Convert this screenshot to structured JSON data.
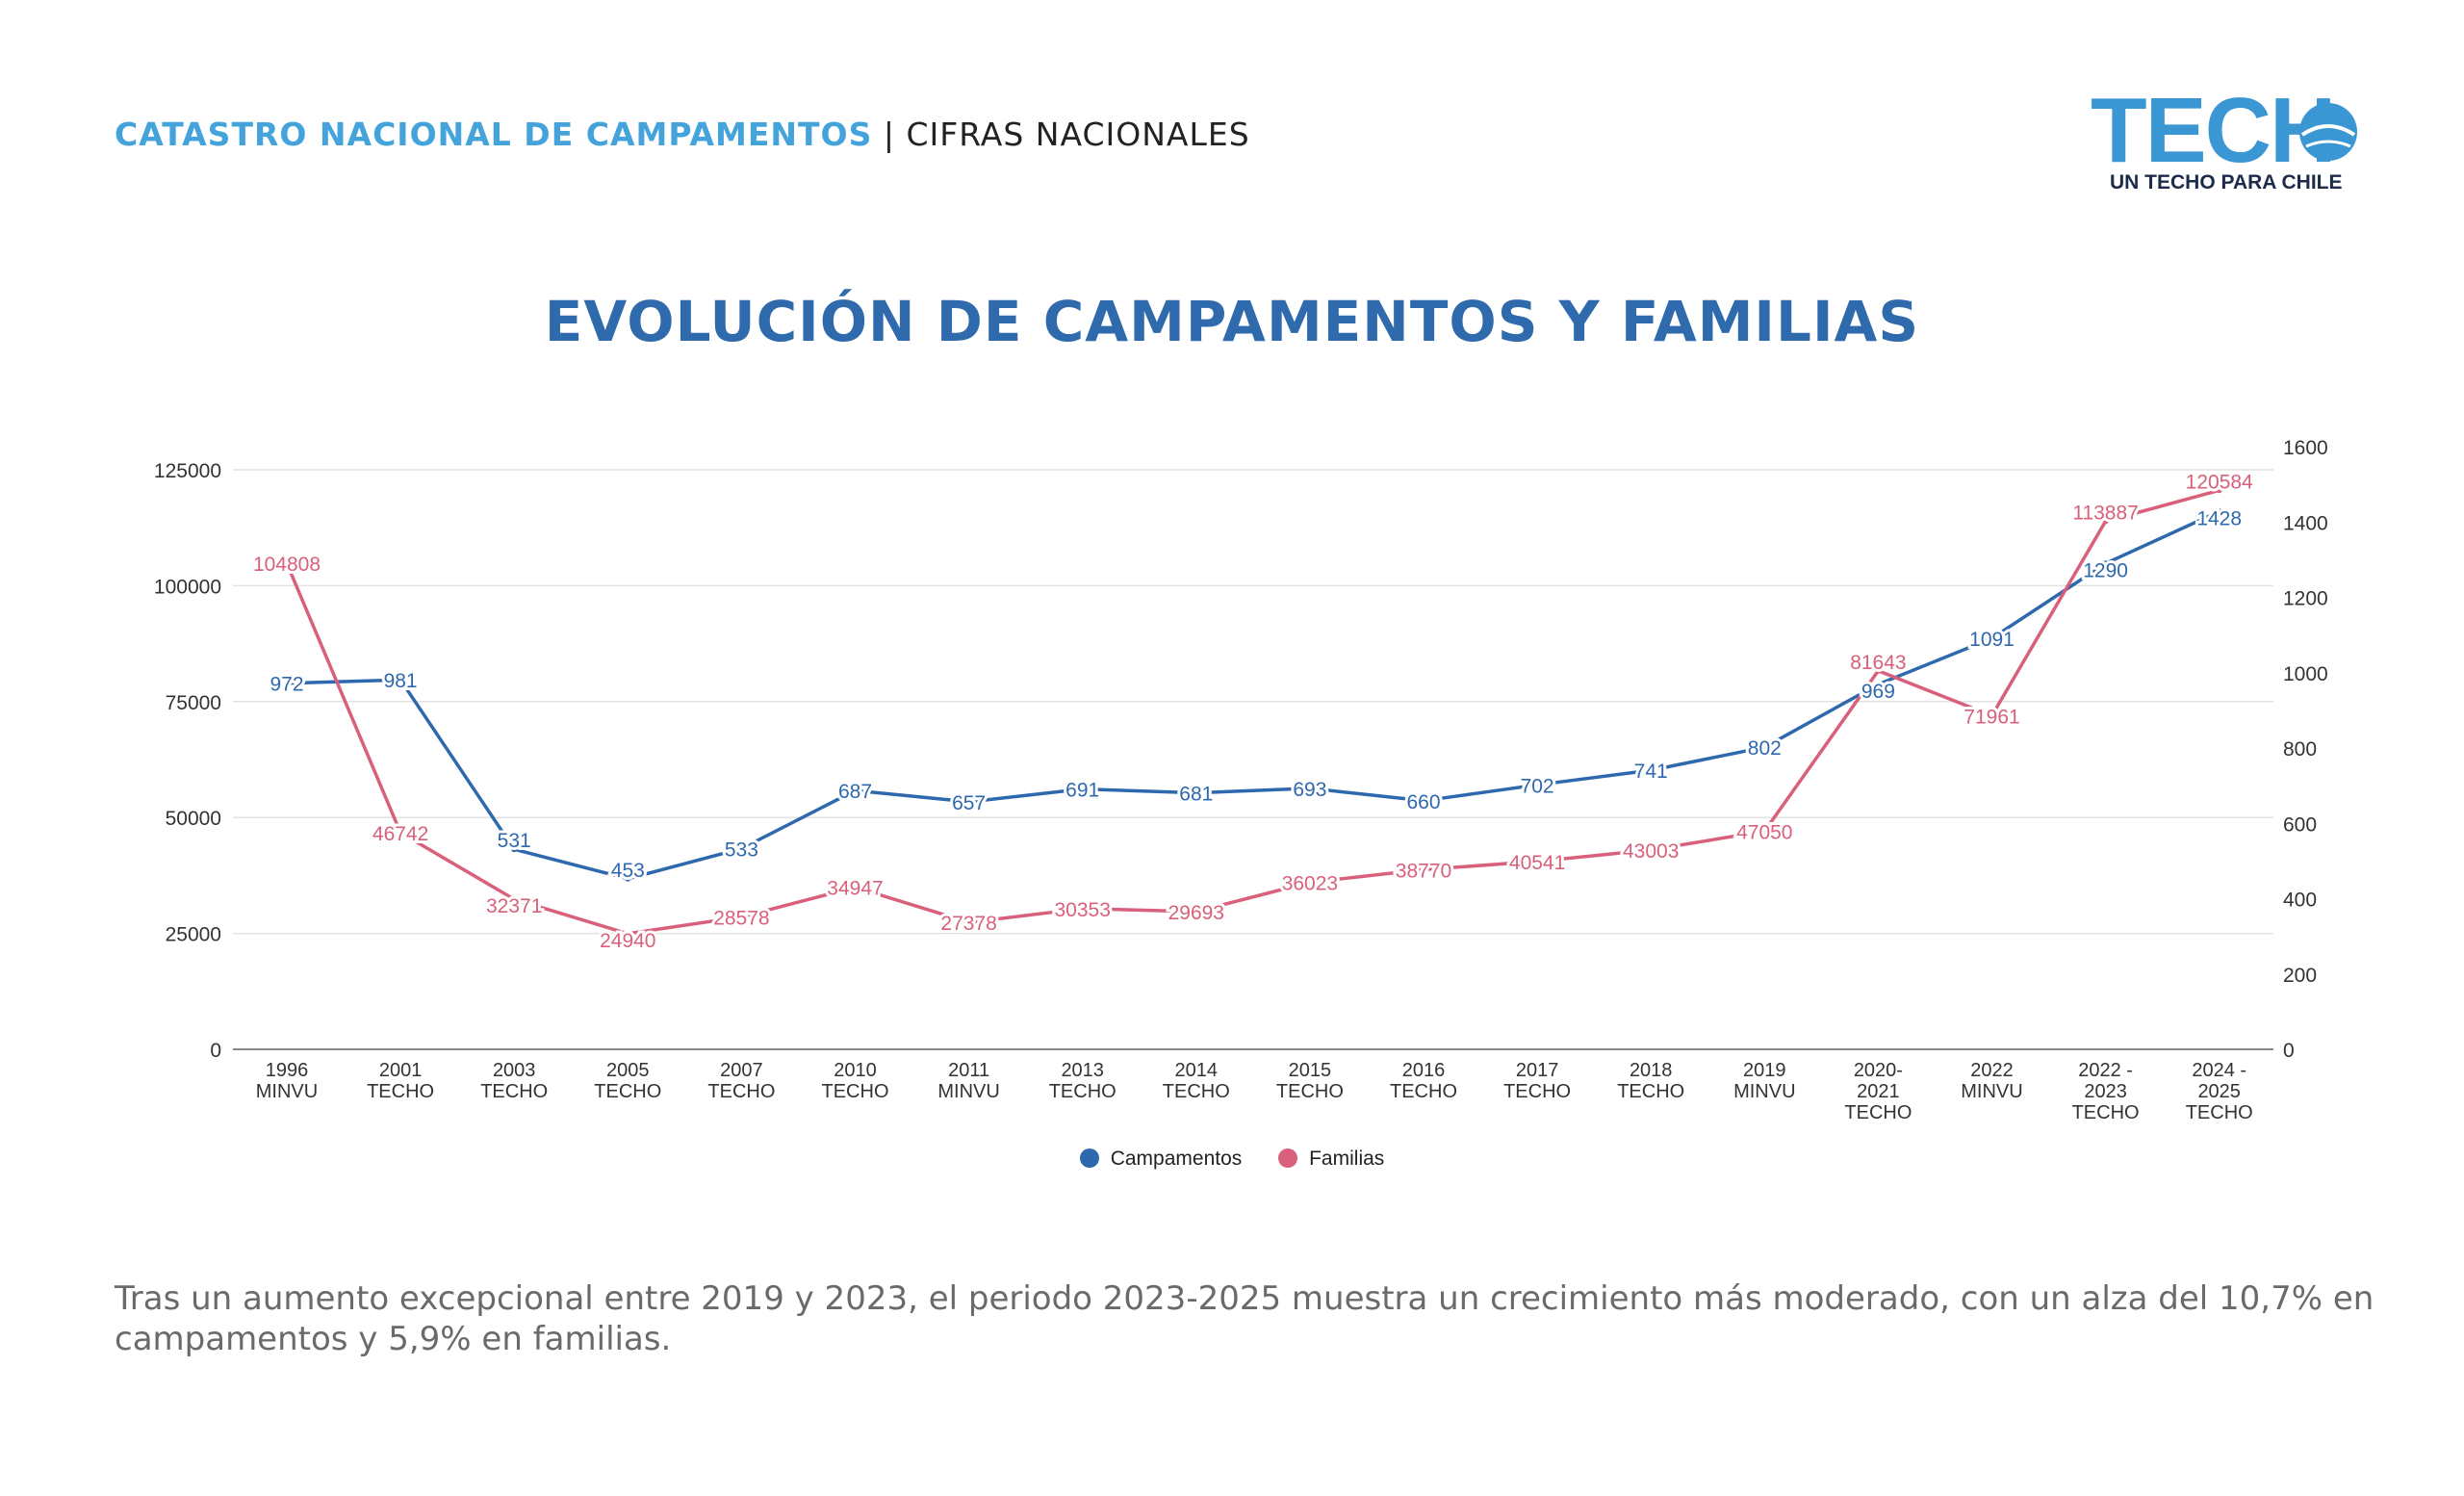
{
  "header": {
    "accent": "CATASTRO NACIONAL DE CAMPAMENTOS",
    "rest": "| CIFRAS NACIONALES"
  },
  "logo": {
    "mark": "TECHO",
    "tagline": "UN TECHO PARA CHILE"
  },
  "colors": {
    "campamentos": "#2e68ad",
    "familias": "#d9607a",
    "header_accent": "#45a3dc",
    "title": "#2f6aad"
  },
  "chart_data": {
    "type": "line",
    "title": "EVOLUCIÓN DE CAMPAMENTOS Y FAMILIAS",
    "categories": [
      [
        "1996",
        "MINVU"
      ],
      [
        "2001",
        "TECHO"
      ],
      [
        "2003",
        "TECHO"
      ],
      [
        "2005",
        "TECHO"
      ],
      [
        "2007",
        "TECHO"
      ],
      [
        "2010",
        "TECHO"
      ],
      [
        "2011",
        "MINVU"
      ],
      [
        "2013",
        "TECHO"
      ],
      [
        "2014",
        "TECHO"
      ],
      [
        "2015",
        "TECHO"
      ],
      [
        "2016",
        "TECHO"
      ],
      [
        "2017",
        "TECHO"
      ],
      [
        "2018",
        "TECHO"
      ],
      [
        "2019",
        "MINVU"
      ],
      [
        "2020-",
        "2021",
        "TECHO"
      ],
      [
        "2022",
        "MINVU"
      ],
      [
        "2022 -",
        "2023",
        "TECHO"
      ],
      [
        "2024 -",
        "2025",
        "TECHO"
      ]
    ],
    "series": [
      {
        "name": "Campamentos",
        "axis": "right",
        "values": [
          972,
          981,
          531,
          453,
          533,
          687,
          657,
          691,
          681,
          693,
          660,
          702,
          741,
          802,
          969,
          1091,
          1290,
          1428
        ]
      },
      {
        "name": "Familias",
        "axis": "left",
        "values": [
          104808,
          46742,
          32371,
          24940,
          28578,
          34947,
          27378,
          30353,
          29693,
          36023,
          38770,
          40541,
          43003,
          47050,
          81643,
          71961,
          113887,
          120584
        ]
      }
    ],
    "left_axis": {
      "min": 0,
      "max": 125000,
      "ticks": [
        0,
        25000,
        50000,
        75000,
        100000,
        125000
      ]
    },
    "right_axis": {
      "min": 0,
      "max": 1600,
      "ticks": [
        0,
        200,
        400,
        600,
        800,
        1000,
        1200,
        1400,
        1600
      ]
    },
    "grid": true,
    "legend": "bottom-center"
  },
  "footnote": "Tras un aumento excepcional entre 2019 y 2023, el periodo 2023-2025 muestra un crecimiento más moderado, con un alza del 10,7% en  campamentos y 5,9% en familias."
}
